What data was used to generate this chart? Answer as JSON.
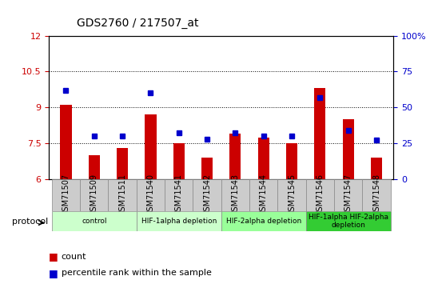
{
  "title": "GDS2760 / 217507_at",
  "samples": [
    "GSM71507",
    "GSM71509",
    "GSM71511",
    "GSM71540",
    "GSM71541",
    "GSM71542",
    "GSM71543",
    "GSM71544",
    "GSM71545",
    "GSM71546",
    "GSM71547",
    "GSM71548"
  ],
  "count_values": [
    9.1,
    7.0,
    7.3,
    8.7,
    7.5,
    6.9,
    7.9,
    7.75,
    7.5,
    9.8,
    8.5,
    6.9
  ],
  "percentile_values": [
    62,
    30,
    30,
    60,
    32,
    28,
    32,
    30,
    30,
    57,
    34,
    27
  ],
  "ylim_left": [
    6,
    12
  ],
  "ylim_right": [
    0,
    100
  ],
  "yticks_left": [
    6,
    7.5,
    9,
    10.5,
    12
  ],
  "yticks_right": [
    0,
    25,
    50,
    75,
    100
  ],
  "ytick_labels_left": [
    "6",
    "7.5",
    "9",
    "10.5",
    "12"
  ],
  "ytick_labels_right": [
    "0",
    "25",
    "50",
    "75",
    "100%"
  ],
  "bar_color": "#cc0000",
  "dot_color": "#0000cc",
  "bar_bottom": 6,
  "percentile_scale": 100,
  "grid_color": "#000000",
  "groups": [
    {
      "label": "control",
      "start": 0,
      "end": 2,
      "color": "#ccffcc"
    },
    {
      "label": "HIF-1alpha depletion",
      "start": 3,
      "end": 5,
      "color": "#ccffcc"
    },
    {
      "label": "HIF-2alpha depletion",
      "start": 6,
      "end": 8,
      "color": "#99ff99"
    },
    {
      "label": "HIF-1alpha HIF-2alpha\ndepletion",
      "start": 9,
      "end": 11,
      "color": "#33cc33"
    }
  ],
  "xlabel_color": "#cc0000",
  "ylabel_right_color": "#0000cc",
  "protocol_label": "protocol",
  "legend_items": [
    {
      "label": "count",
      "color": "#cc0000"
    },
    {
      "label": "percentile rank within the sample",
      "color": "#0000cc"
    }
  ]
}
